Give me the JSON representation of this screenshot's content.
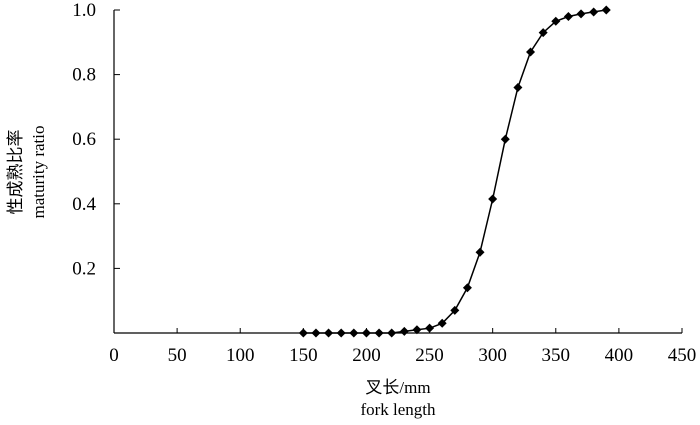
{
  "chart_data": {
    "type": "line",
    "title": "",
    "xlabel": "叉长/mm",
    "xlabel_en": "fork length",
    "ylabel": "性成熟比率",
    "ylabel_en": "maturity ratio",
    "xlim": [
      0,
      450
    ],
    "ylim": [
      0,
      1.0
    ],
    "x_ticks": [
      "0",
      "50",
      "100",
      "150",
      "200",
      "250",
      "300",
      "350",
      "400",
      "450"
    ],
    "y_ticks": [
      "",
      "0.2",
      "0.4",
      "0.6",
      "0.8",
      "1.0"
    ],
    "grid": false,
    "legend": "none",
    "marker": "diamond",
    "color": "#000000",
    "series": [
      {
        "x": [
          150,
          160,
          170,
          180,
          190,
          200,
          210,
          220,
          230,
          240,
          250,
          260,
          270,
          280,
          290,
          300,
          310,
          320,
          330,
          340,
          350,
          360,
          370,
          380,
          390
        ],
        "y": [
          0.0,
          0.0,
          0.0,
          0.0,
          0.0,
          0.0,
          0.0,
          0.0,
          0.005,
          0.01,
          0.015,
          0.03,
          0.07,
          0.14,
          0.25,
          0.415,
          0.6,
          0.76,
          0.87,
          0.93,
          0.965,
          0.98,
          0.988,
          0.994,
          1.0
        ]
      }
    ]
  }
}
